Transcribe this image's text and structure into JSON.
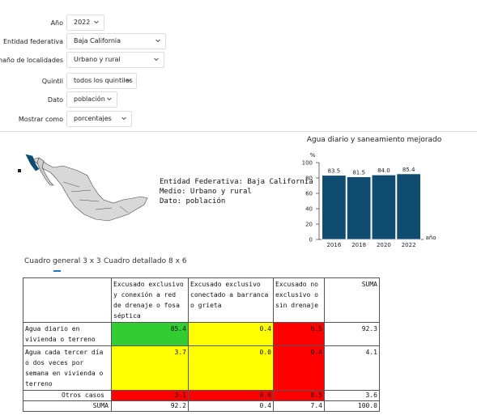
{
  "filters": [
    {
      "label": "Año",
      "value": "2022"
    },
    {
      "label": "Entidad federativa",
      "value": "Baja California"
    },
    {
      "label": "Tamaño de localidades",
      "value": "Urbano y rural"
    },
    {
      "label": "Quintil",
      "value": "todos los quintiles"
    },
    {
      "label": "Dato",
      "value": "población"
    },
    {
      "label": "Mostrar como",
      "value": "porcentajes"
    }
  ],
  "info": [
    "Entidad Federativa: Baja California",
    "Medio: Urbano y rural",
    "Dato: población"
  ],
  "chart_data": {
    "type": "bar",
    "title": "Agua diario y saneamiento mejorado",
    "y_label": "%",
    "x_label": "año",
    "categories": [
      "2016",
      "2018",
      "2020",
      "2022"
    ],
    "values": [
      83.5,
      81.5,
      84.0,
      85.4
    ],
    "value_labels": [
      "83.5",
      "81.5",
      "84.0",
      "85.4"
    ],
    "color": "#0f4c70",
    "ylim": [
      0,
      100
    ],
    "yticks": [
      0,
      20,
      40,
      60,
      80,
      100
    ]
  },
  "tabs": [
    "Cuadro general 3 x 3",
    "Cuadro detallado 8 x 6"
  ],
  "table": {
    "columns": [
      "Excusado exclusivo y conexión a red de drenaje o fosa séptica",
      "Excusado exclusivo conectado a barranca o grieta",
      "Excusado no exclusivo o sin drenaje",
      "SUMA"
    ],
    "rows": [
      {
        "label": "Agua diario en vivienda o terreno",
        "cells": [
          "85.4",
          "0.4",
          "6.5",
          "92.3"
        ],
        "colors": [
          "#33cc33",
          "#ffff00",
          "#ff0000"
        ]
      },
      {
        "label": "Agua cada tercer día o dos veces por semana en vivienda o terreno",
        "cells": [
          "3.7",
          "0.0",
          "0.4",
          "4.1"
        ],
        "colors": [
          "#ffff00",
          "#ffff00",
          "#ff0000"
        ]
      },
      {
        "label": "Otros casos",
        "cells": [
          "3.1",
          "0.0",
          "0.5",
          "3.6"
        ],
        "colors": [
          "#ff0000",
          "#ff0000",
          "#ff0000"
        ]
      },
      {
        "label": "SUMA",
        "cells": [
          "92.2",
          "0.4",
          "7.4",
          "100.0"
        ]
      }
    ]
  }
}
